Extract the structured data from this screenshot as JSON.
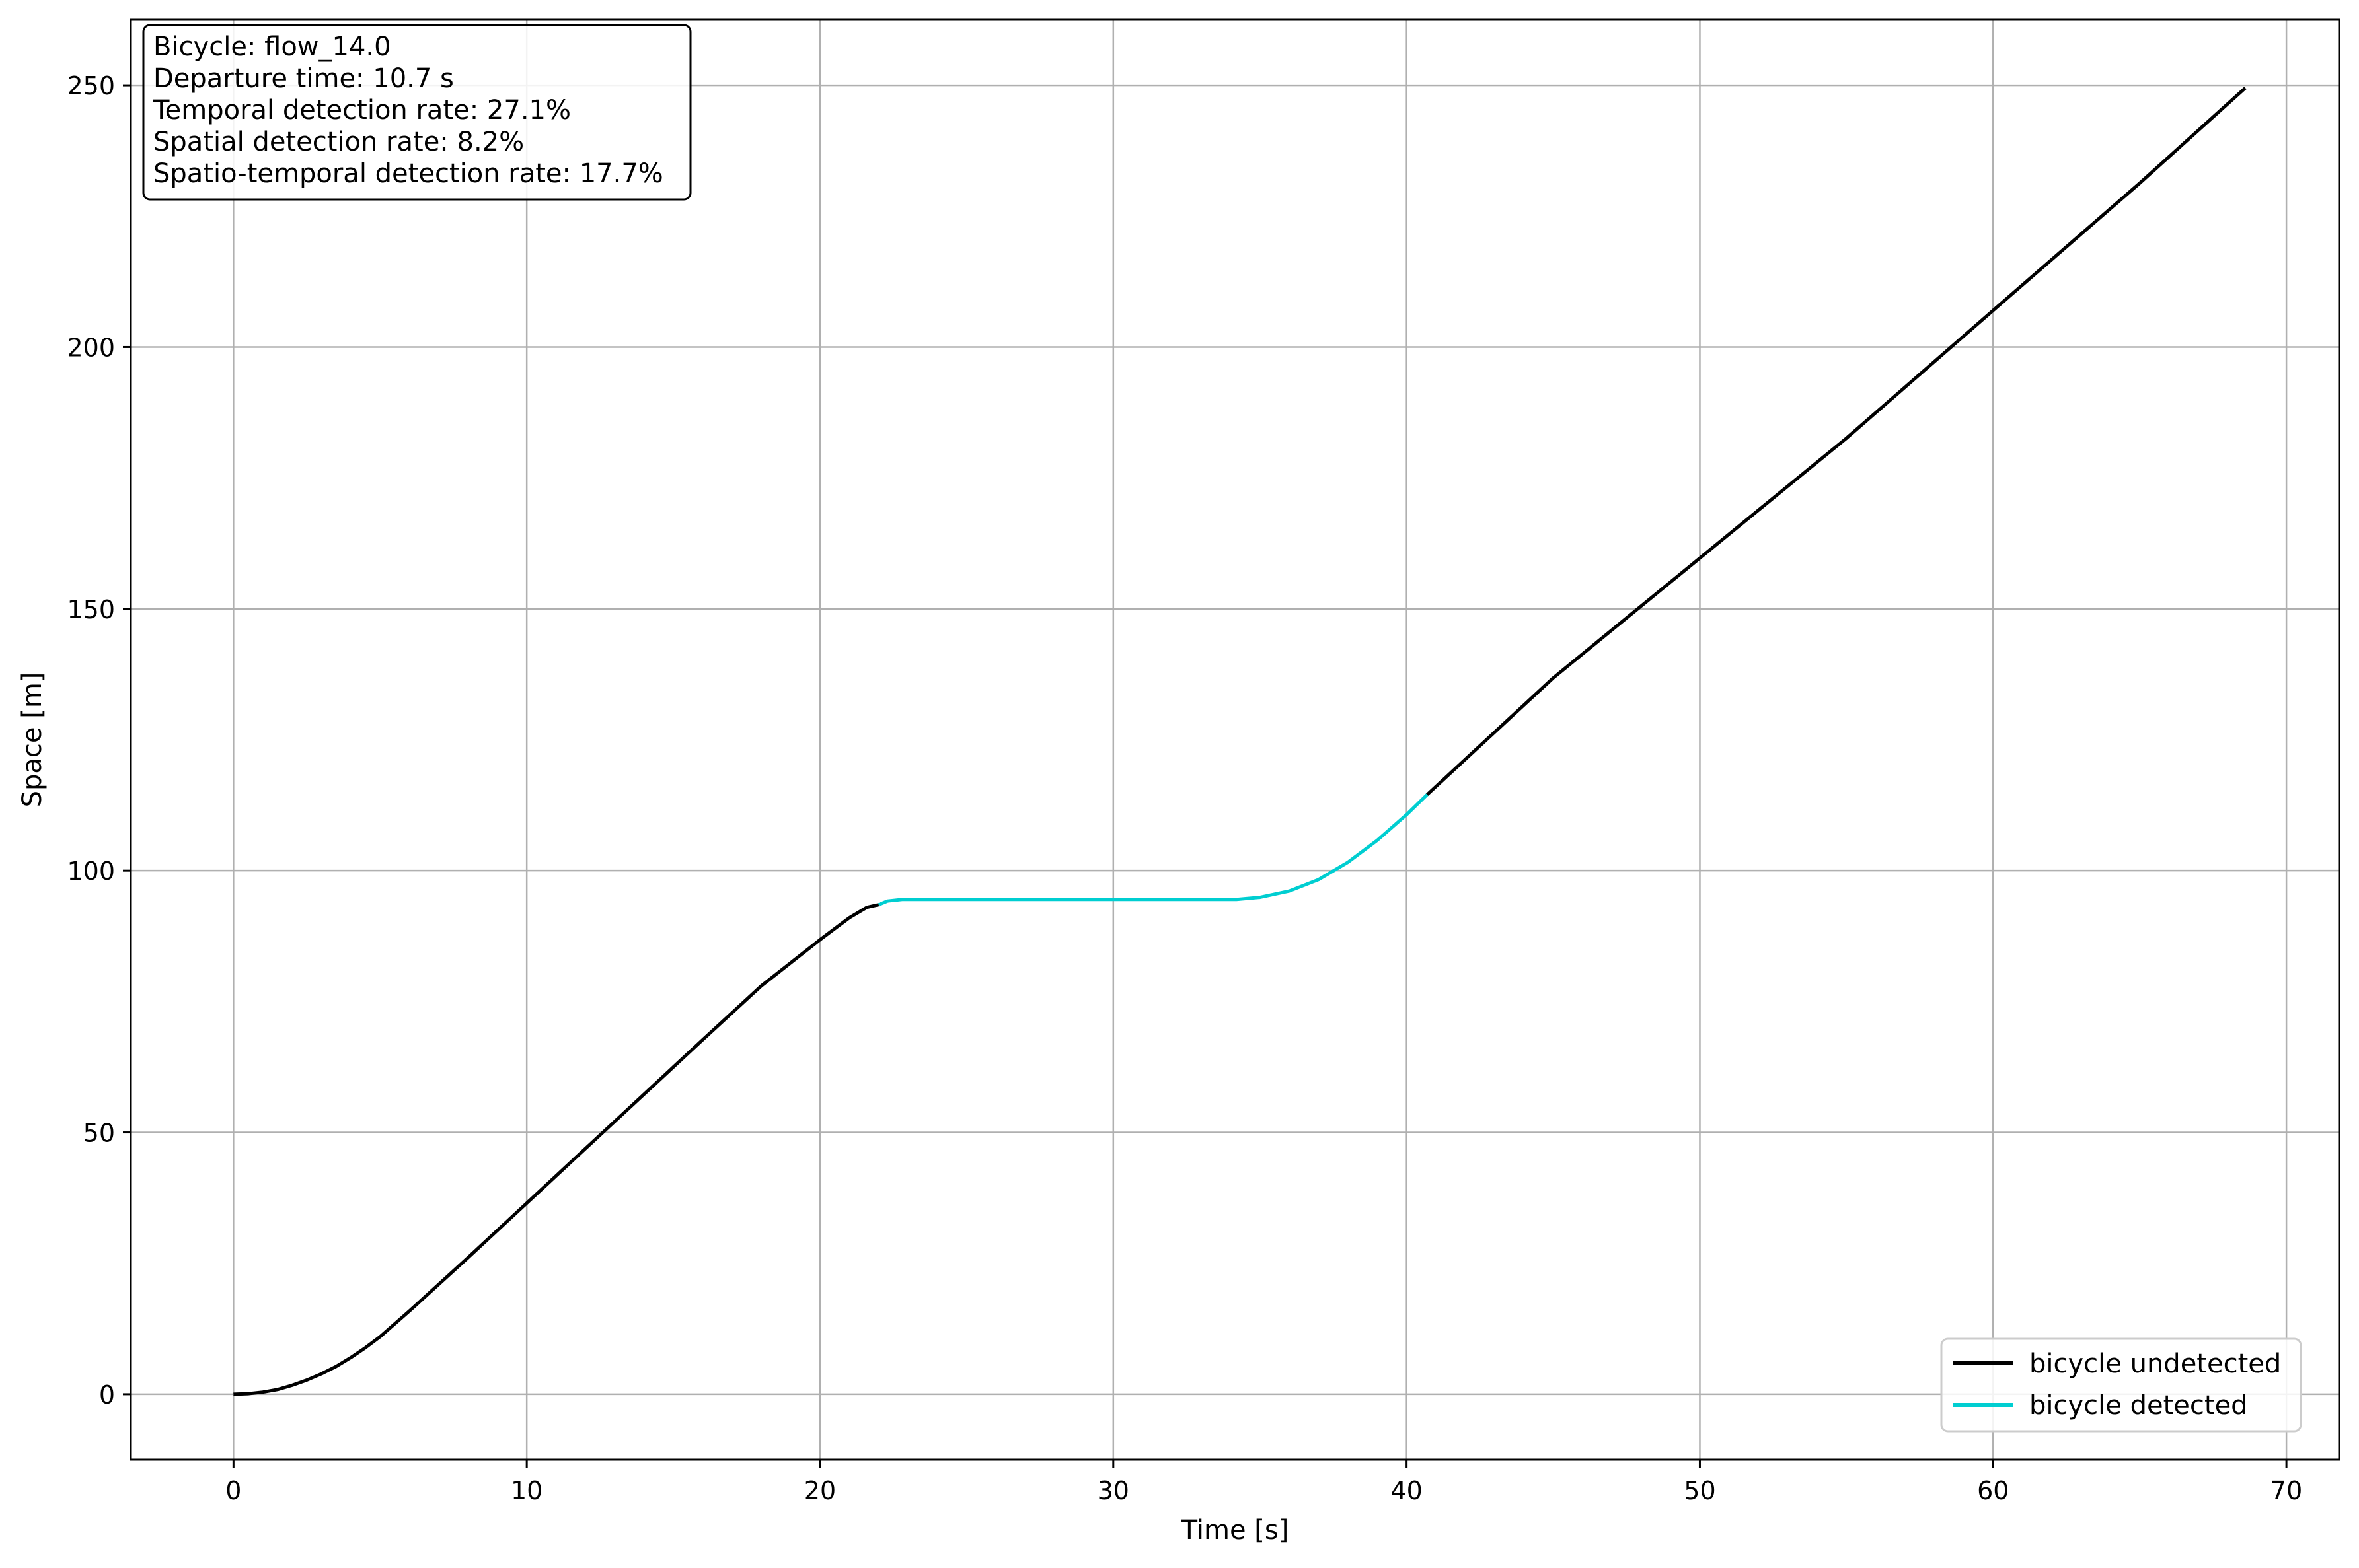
{
  "chart_data": {
    "type": "line",
    "xlabel": "Time [s]",
    "ylabel": "Space [m]",
    "xlim": [
      -3.5,
      71.8
    ],
    "ylim": [
      -12.5,
      262.5
    ],
    "xticks": [
      0,
      10,
      20,
      30,
      40,
      50,
      60,
      70
    ],
    "yticks": [
      0,
      50,
      100,
      150,
      200,
      250
    ],
    "grid": true,
    "legend_position": "lower-right",
    "info_box": {
      "position": "top-left",
      "lines": [
        "Bicycle: flow_14.0",
        "Departure time: 10.7 s",
        "Temporal detection rate: 27.1%",
        "Spatial detection rate: 8.2%",
        "Spatio-temporal detection rate: 17.7%"
      ]
    },
    "series": [
      {
        "name": "bicycle undetected",
        "color": "#000000",
        "segments": [
          [
            [
              0,
              0
            ],
            [
              0.5,
              0.1
            ],
            [
              1,
              0.4
            ],
            [
              1.5,
              0.9
            ],
            [
              2,
              1.7
            ],
            [
              2.5,
              2.7
            ],
            [
              3,
              3.9
            ],
            [
              3.5,
              5.3
            ],
            [
              4,
              7.0
            ],
            [
              4.5,
              8.9
            ],
            [
              5,
              11.0
            ],
            [
              6,
              15.9
            ],
            [
              8,
              26.1
            ],
            [
              10,
              36.5
            ],
            [
              12,
              46.9
            ],
            [
              14,
              57.3
            ],
            [
              16,
              67.7
            ],
            [
              18,
              78.0
            ],
            [
              20,
              86.8
            ],
            [
              21,
              91.0
            ],
            [
              21.6,
              93.0
            ],
            [
              22.0,
              93.5
            ]
          ],
          [
            [
              40.7,
              114.5
            ],
            [
              45,
              136.8
            ],
            [
              50,
              159.7
            ],
            [
              55,
              182.6
            ],
            [
              60,
              207.0
            ],
            [
              65,
              231.3
            ],
            [
              68.6,
              249.5
            ]
          ]
        ]
      },
      {
        "name": "bicycle detected",
        "color": "#00ced1",
        "segments": [
          [
            [
              22.0,
              93.5
            ],
            [
              22.3,
              94.2
            ],
            [
              22.8,
              94.5
            ],
            [
              25,
              94.5
            ],
            [
              30,
              94.5
            ],
            [
              34.2,
              94.5
            ],
            [
              35,
              94.9
            ],
            [
              36,
              96.1
            ],
            [
              37,
              98.3
            ],
            [
              38,
              101.6
            ],
            [
              39,
              105.8
            ],
            [
              40,
              110.7
            ],
            [
              40.7,
              114.5
            ]
          ]
        ]
      }
    ]
  }
}
